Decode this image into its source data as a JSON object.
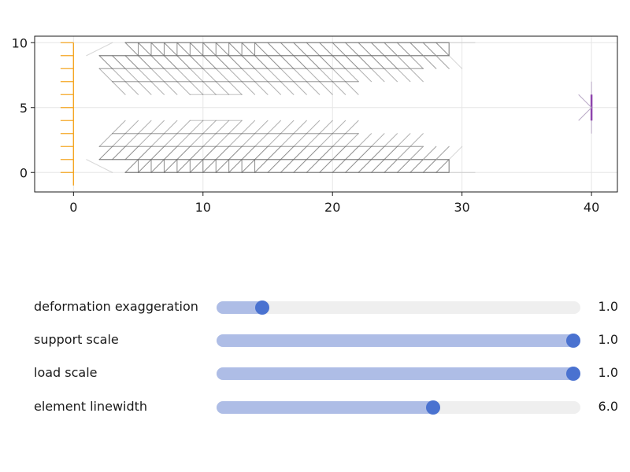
{
  "plot": {
    "x_ticks": [
      "0",
      "10",
      "20",
      "30",
      "40"
    ],
    "y_ticks": [
      "0",
      "5",
      "10"
    ],
    "xlim": [
      -3,
      42
    ],
    "ylim": [
      -1.5,
      10.5
    ],
    "colors": {
      "element": "#6e6e6e",
      "deformed": "#bdbdbd",
      "support": "#f5a623",
      "load": "#8e44ad",
      "grid": "#e6e6e6",
      "frame": "#1a1a1a"
    }
  },
  "sliders": [
    {
      "id": "deformation-exaggeration",
      "label": "deformation exaggeration",
      "value": "1.0",
      "fraction": 0.11
    },
    {
      "id": "support-scale",
      "label": "support scale",
      "value": "1.0",
      "fraction": 1.0
    },
    {
      "id": "load-scale",
      "label": "load scale",
      "value": "1.0",
      "fraction": 1.0
    },
    {
      "id": "element-linewidth",
      "label": "element linewidth",
      "value": "6.0",
      "fraction": 0.6
    }
  ]
}
